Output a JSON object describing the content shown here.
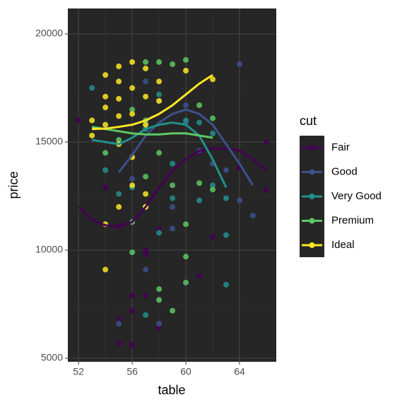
{
  "chart_data": {
    "type": "scatter",
    "x_label": "table",
    "y_label": "price",
    "legend_title": "cut",
    "xlim": [
      51.2,
      66.74
    ],
    "ylim": [
      4837,
      21176
    ],
    "xticks": [
      52,
      56,
      60,
      64
    ],
    "yticks": [
      5000,
      10000,
      15000,
      20000
    ],
    "grid": true,
    "legend_position": "right",
    "series": [
      {
        "name": "Fair",
        "color": "#440154",
        "x": [
          52,
          55,
          55,
          56,
          56,
          56,
          57,
          57,
          57,
          58,
          58,
          60,
          61,
          62,
          64,
          66,
          66,
          54,
          55,
          59,
          61
        ],
        "values": [
          16000,
          6800,
          5700,
          5600,
          7200,
          7900,
          10000,
          9800,
          7900,
          6400,
          11000,
          8500,
          8800,
          10600,
          13800,
          15000,
          12800,
          12900,
          11100,
          13000,
          14500
        ],
        "smooth_x": [
          52,
          53,
          54,
          55,
          56,
          57,
          58,
          59,
          60,
          61,
          62,
          63,
          64,
          65,
          66
        ],
        "smooth_values": [
          12000,
          11400,
          11150,
          11100,
          11300,
          12000,
          12900,
          13700,
          14200,
          14600,
          14700,
          14700,
          14600,
          14200,
          13700
        ]
      },
      {
        "name": "Good",
        "color": "#3b528b",
        "x": [
          55,
          57,
          58,
          59,
          60,
          60,
          61,
          62,
          63,
          64,
          64,
          65,
          57,
          58,
          59,
          56
        ],
        "values": [
          6600,
          9100,
          6600,
          11000,
          16700,
          15900,
          14600,
          14000,
          13700,
          18600,
          12300,
          11600,
          17800,
          16900,
          12000,
          13300
        ],
        "smooth_x": [
          55,
          56,
          57,
          58,
          59,
          60,
          61,
          62,
          63,
          64,
          65
        ],
        "smooth_values": [
          13600,
          14400,
          15300,
          15900,
          16300,
          16500,
          16300,
          15800,
          14900,
          14000,
          13000
        ]
      },
      {
        "name": "Very Good",
        "color": "#21908c",
        "x": [
          53,
          54,
          56,
          57,
          58,
          59,
          60,
          61,
          62,
          63,
          63,
          63,
          62,
          57,
          58,
          59,
          55,
          61
        ],
        "values": [
          17500,
          13700,
          12900,
          7000,
          10800,
          12400,
          16000,
          15900,
          13000,
          12400,
          8400,
          10700,
          15400,
          15600,
          17200,
          14000,
          12600,
          12300
        ],
        "smooth_x": [
          53,
          54,
          55,
          56,
          57,
          58,
          59,
          60,
          61,
          62,
          63
        ],
        "smooth_values": [
          15100,
          15000,
          14900,
          15200,
          15600,
          15800,
          15900,
          15800,
          15300,
          14200,
          12900
        ]
      },
      {
        "name": "Premium",
        "color": "#5dc863",
        "x": [
          57,
          57,
          57,
          57,
          58,
          58,
          58,
          58,
          59,
          59,
          59,
          60,
          60,
          60,
          60,
          61,
          61,
          62,
          62,
          56,
          56,
          56,
          55,
          54
        ],
        "values": [
          18700,
          16000,
          13400,
          12000,
          18700,
          14500,
          8200,
          7700,
          18600,
          13000,
          7200,
          18800,
          9700,
          8500,
          11200,
          16700,
          13100,
          16100,
          12800,
          9900,
          11300,
          16500,
          15100,
          14500
        ],
        "smooth_x": [
          53,
          54,
          55,
          56,
          57,
          58,
          59,
          60,
          61,
          62
        ],
        "smooth_values": [
          15700,
          15600,
          15500,
          15400,
          15350,
          15350,
          15400,
          15400,
          15300,
          15200
        ]
      },
      {
        "name": "Ideal",
        "color": "#fde725",
        "x": [
          53,
          53,
          54,
          54,
          54,
          54,
          54,
          54,
          55,
          55,
          55,
          55,
          55,
          55,
          56,
          56,
          56,
          56,
          56,
          57,
          57,
          57,
          57,
          57,
          58,
          58,
          60,
          62
        ],
        "values": [
          15300,
          16000,
          18100,
          17100,
          16600,
          15800,
          11200,
          9100,
          18500,
          17800,
          17000,
          16200,
          14900,
          12000,
          18700,
          17500,
          16300,
          14300,
          13000,
          18400,
          17100,
          15800,
          12600,
          12000,
          17800,
          16900,
          18300,
          17900
        ],
        "smooth_x": [
          53,
          54,
          55,
          56,
          57,
          58,
          59,
          60,
          61,
          62
        ],
        "smooth_values": [
          15600,
          15620,
          15700,
          15800,
          16000,
          16300,
          16700,
          17200,
          17700,
          18100
        ]
      }
    ]
  }
}
